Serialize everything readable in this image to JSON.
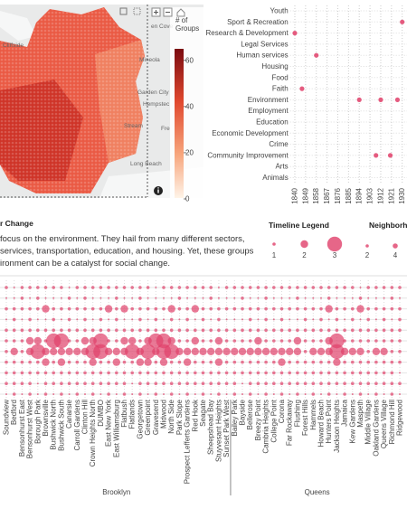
{
  "map": {
    "labels": [
      {
        "text": "Cliffside",
        "x": 3,
        "y": 52
      },
      {
        "text": "en Cove",
        "x": 167,
        "y": 31
      },
      {
        "text": "Mineola",
        "x": 154,
        "y": 68
      },
      {
        "text": "Garden City",
        "x": 152,
        "y": 104
      },
      {
        "text": "Hempstec",
        "x": 158,
        "y": 117
      },
      {
        "text": "Stream",
        "x": 137,
        "y": 141
      },
      {
        "text": "Fre",
        "x": 178,
        "y": 144
      },
      {
        "text": "Long Beach",
        "x": 144,
        "y": 183
      }
    ],
    "colorbar": {
      "title": [
        "# of",
        "Groups"
      ],
      "lim": [
        0,
        65
      ],
      "ticks": [
        0,
        20,
        40,
        60
      ]
    }
  },
  "chart_data": {
    "type": "scatter",
    "categories": [
      "Youth",
      "Sport & Recreation",
      "Research & Development",
      "Legal Services",
      "Human services",
      "Housing",
      "Food",
      "Faith",
      "Environment",
      "Employment",
      "Education",
      "Economic Development",
      "Crime",
      "Community Improvement",
      "Arts",
      "Animals"
    ],
    "years": [
      [],
      [
        1930
      ],
      [
        1840
      ],
      [],
      [
        1858
      ],
      [],
      [],
      [
        1846
      ],
      [
        1894,
        1912,
        1926
      ],
      [],
      [],
      [],
      [],
      [
        1908,
        1920
      ],
      [],
      []
    ],
    "xlim": [
      1836,
      1934
    ],
    "xticks": [
      1840,
      1849,
      1858,
      1867,
      1876,
      1885,
      1894,
      1903,
      1912,
      1921,
      1930
    ],
    "color": "#e0406a"
  },
  "text": {
    "title": "r Change",
    "lines": [
      "focus on the environment. They hail from many different sectors,",
      "services, transportation, education, and housing. Yet, these groups",
      "ironment can be a catalyst for social change."
    ]
  },
  "timeline_legend": {
    "title": "Timeline Legend",
    "values": [
      1,
      2,
      3
    ]
  },
  "neighborhood_legend": {
    "title": "Neighborh",
    "values": [
      2,
      4
    ]
  },
  "matrix": {
    "columns": [
      "Soundview",
      "Bedford",
      "Bensonhurst East",
      "Bensonhurst West",
      "Borough Park",
      "Brownsville",
      "Bushwick North",
      "Bushwick South",
      "Canarsie",
      "Carroll Gardens",
      "Clinton Hill",
      "Crown Heights North",
      "DUMBO",
      "East New York",
      "East Williamsburg",
      "Flatbush",
      "Flatlands",
      "Georgetown",
      "Greenpoint",
      "Gravesend",
      "Midwood",
      "North Side",
      "Park Slope",
      "Prospect Lefferts Gardens",
      "Red Hook",
      "Seagate",
      "Sheepshead Bay",
      "Stuyvesant Heights",
      "Sunset Park West",
      "Bailey Park",
      "Bayside",
      "Bellerose",
      "Breezy Point",
      "Cambria Heights",
      "College Point",
      "Corona",
      "Far Rockaway",
      "Flushing",
      "Forest Hills",
      "Hammels",
      "Howard Beach",
      "Hunters Point",
      "Jackson Heights",
      "Jamaica",
      "Kew Gardens",
      "Maspeth",
      "Middle Village",
      "Oakland Gardens",
      "Queens Village",
      "Richmond Hill",
      "Ridgewood"
    ],
    "groups": [
      {
        "name": "Brooklyn",
        "count": 29
      },
      {
        "name": "Queens",
        "count": 22
      }
    ],
    "values": [
      [
        1,
        0,
        1,
        1,
        1,
        1,
        1,
        1,
        0,
        1,
        1,
        1,
        1,
        1,
        1,
        1,
        1,
        1,
        1,
        0,
        1,
        1,
        1,
        1,
        1,
        1,
        1,
        0,
        1,
        1,
        1,
        1,
        1,
        1,
        1,
        1,
        1,
        1,
        1,
        1,
        1,
        1,
        1,
        1,
        1,
        0,
        1,
        1,
        1,
        1,
        1
      ],
      [
        0,
        0,
        1,
        0,
        1,
        0,
        0,
        0,
        1,
        0,
        1,
        0,
        0,
        0,
        1,
        0,
        0,
        1,
        0,
        0,
        0,
        0,
        1,
        0,
        0,
        0,
        1,
        0,
        0,
        0,
        1,
        0,
        0,
        1,
        0,
        0,
        0,
        1,
        0,
        0,
        0,
        1,
        0,
        0,
        0,
        1,
        0,
        0,
        0,
        1,
        0
      ],
      [
        1,
        1,
        1,
        1,
        1,
        2,
        1,
        1,
        1,
        1,
        1,
        1,
        1,
        2,
        1,
        2,
        1,
        1,
        1,
        1,
        1,
        2,
        1,
        1,
        2,
        1,
        1,
        1,
        1,
        1,
        1,
        1,
        1,
        1,
        1,
        1,
        1,
        1,
        1,
        1,
        1,
        2,
        1,
        1,
        1,
        2,
        1,
        1,
        1,
        1,
        1
      ],
      [
        0,
        1,
        0,
        1,
        0,
        0,
        1,
        0,
        1,
        0,
        1,
        0,
        1,
        0,
        1,
        0,
        0,
        1,
        0,
        1,
        0,
        1,
        0,
        1,
        0,
        1,
        0,
        1,
        0,
        0,
        0,
        1,
        0,
        1,
        0,
        1,
        0,
        0,
        1,
        0,
        1,
        0,
        1,
        0,
        1,
        0,
        1,
        0,
        1,
        0,
        1
      ],
      [
        1,
        1,
        1,
        1,
        1,
        1,
        1,
        1,
        1,
        1,
        1,
        1,
        1,
        1,
        1,
        1,
        1,
        1,
        1,
        1,
        1,
        1,
        1,
        1,
        1,
        1,
        1,
        1,
        1,
        1,
        1,
        1,
        1,
        1,
        1,
        1,
        1,
        1,
        1,
        1,
        1,
        1,
        1,
        1,
        1,
        1,
        1,
        1,
        1,
        1,
        1
      ],
      [
        1,
        1,
        1,
        2,
        2,
        1,
        3,
        3,
        1,
        1,
        2,
        2,
        3,
        1,
        1,
        2,
        2,
        1,
        2,
        3,
        3,
        2,
        1,
        1,
        2,
        1,
        1,
        2,
        1,
        1,
        1,
        1,
        2,
        1,
        1,
        1,
        1,
        2,
        1,
        1,
        1,
        2,
        3,
        1,
        1,
        1,
        1,
        1,
        1,
        1,
        1
      ],
      [
        1,
        2,
        1,
        2,
        3,
        2,
        2,
        2,
        2,
        2,
        2,
        3,
        3,
        2,
        2,
        2,
        3,
        2,
        3,
        2,
        3,
        3,
        2,
        2,
        2,
        2,
        2,
        2,
        2,
        2,
        2,
        2,
        2,
        2,
        2,
        2,
        2,
        2,
        1,
        2,
        2,
        2,
        3,
        2,
        2,
        2,
        1,
        2,
        2,
        1,
        1
      ],
      [
        1,
        1,
        1,
        1,
        1,
        2,
        1,
        2,
        1,
        1,
        1,
        2,
        1,
        1,
        2,
        1,
        1,
        2,
        2,
        1,
        2,
        1,
        1,
        2,
        1,
        1,
        1,
        2,
        1,
        1,
        1,
        1,
        1,
        1,
        1,
        2,
        1,
        1,
        1,
        1,
        1,
        1,
        2,
        1,
        1,
        1,
        1,
        1,
        1,
        1,
        1
      ],
      [
        1,
        1,
        1,
        1,
        1,
        1,
        1,
        1,
        1,
        1,
        1,
        1,
        1,
        1,
        1,
        1,
        1,
        1,
        1,
        1,
        1,
        1,
        1,
        1,
        1,
        1,
        1,
        1,
        1,
        1,
        1,
        1,
        1,
        1,
        1,
        1,
        1,
        1,
        1,
        1,
        1,
        1,
        1,
        1,
        1,
        1,
        1,
        1,
        1,
        1,
        0
      ],
      [
        1,
        1,
        1,
        1,
        0,
        1,
        1,
        1,
        1,
        1,
        1,
        1,
        1,
        1,
        1,
        1,
        0,
        1,
        1,
        1,
        1,
        1,
        1,
        1,
        1,
        1,
        1,
        1,
        1,
        1,
        0,
        1,
        1,
        1,
        1,
        1,
        1,
        1,
        1,
        1,
        1,
        1,
        1,
        1,
        1,
        1,
        1,
        1,
        1,
        1,
        1
      ],
      [
        0,
        1,
        0,
        1,
        0,
        1,
        0,
        1,
        0,
        1,
        0,
        1,
        0,
        1,
        0,
        1,
        0,
        1,
        0,
        1,
        0,
        1,
        0,
        1,
        0,
        1,
        0,
        1,
        0,
        1,
        0,
        1,
        0,
        1,
        0,
        1,
        0,
        1,
        0,
        1,
        0,
        1,
        0,
        1,
        0,
        1,
        0,
        1,
        0,
        1,
        0
      ]
    ]
  }
}
